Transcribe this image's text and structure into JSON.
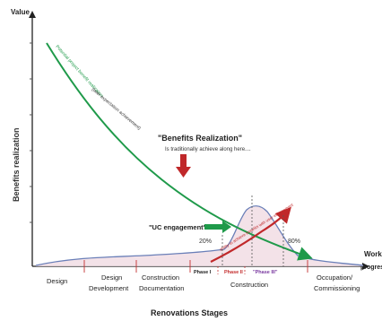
{
  "labels": {
    "value_axis": "Value",
    "y_axis_title": "Benefits realization",
    "x_axis_title_line1": "Work",
    "x_axis_title_line2": "progress",
    "bottom_title": "Renovations Stages"
  },
  "stages": {
    "design": "Design",
    "design_development_1": "Design",
    "design_development_2": "Development",
    "construction_documentation_1": "Construction",
    "construction_documentation_2": "Documentation",
    "construction": "Construction",
    "occupation_1": "Occupation/",
    "occupation_2": "Commissioning"
  },
  "phases": {
    "phase1": "Phase I",
    "phase2": "Phase II",
    "phase3": "\"Phase III\""
  },
  "annotations": {
    "benefits_title": "\"Benefits Realization\"",
    "benefits_subtitle": "Is traditionally achieve along here....",
    "uc_engagement": "\"UC engagement\"",
    "pct_left": "20%",
    "pct_right": "80%",
    "green_curve_label": "Potential project benefit realization",
    "green_curve_label_2": "(later expectation achievement)",
    "red_curve_label": "ability to achieve benefits with user engagement"
  },
  "colors": {
    "green": "#1f9a4a",
    "red": "#c0282a",
    "blue_curve": "#6a7fb8",
    "purple_text": "#7a3aa0",
    "phase_red": "#c43030"
  }
}
